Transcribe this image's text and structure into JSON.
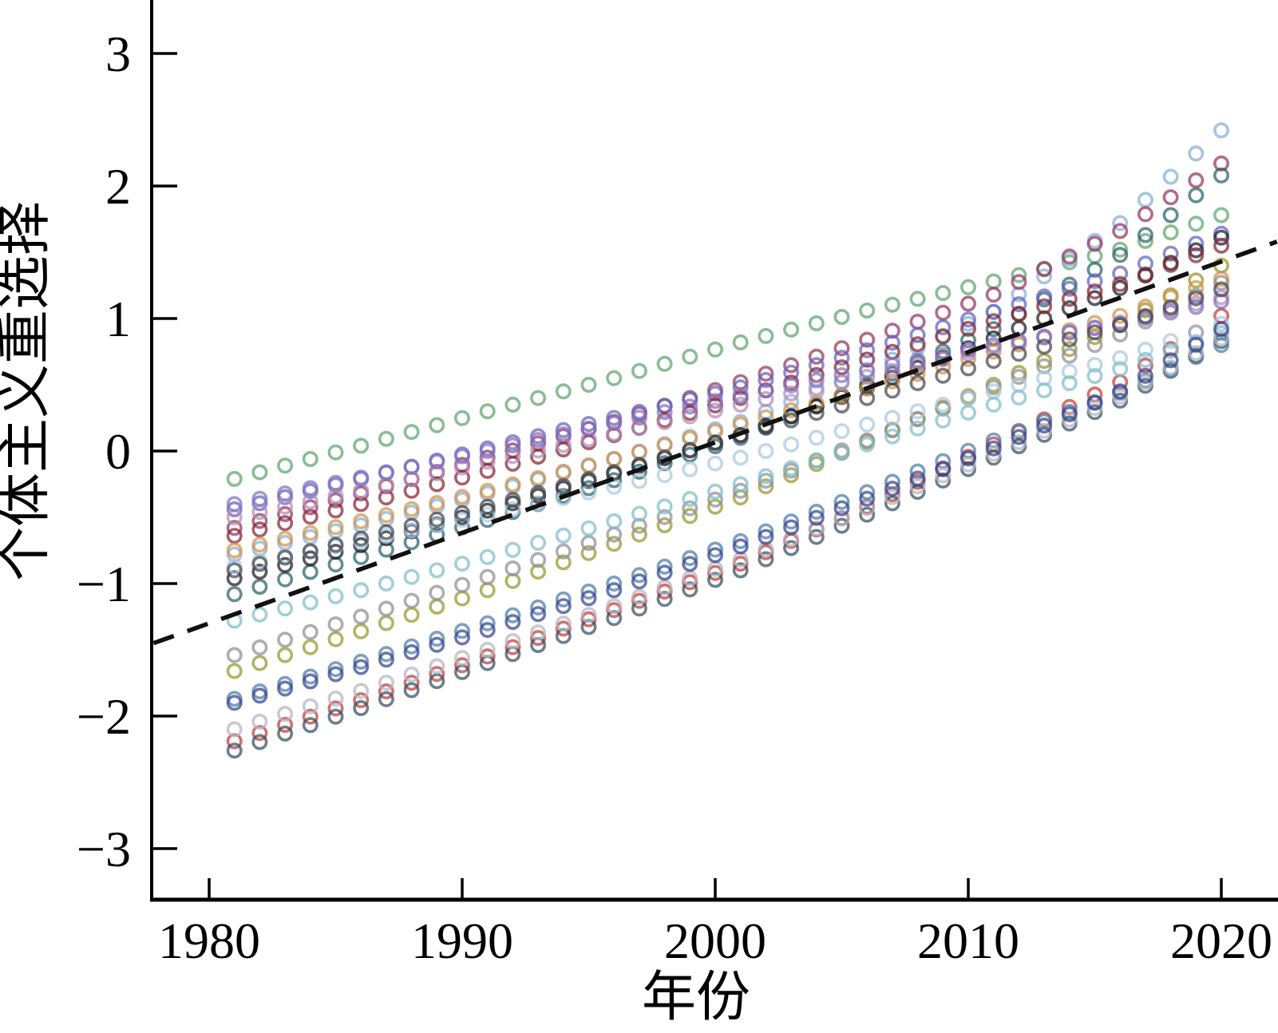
{
  "chart_data": {
    "type": "scatter",
    "title": "",
    "xlabel": "年份",
    "ylabel": "个体主义重选择",
    "x_ticks": [
      1980,
      1990,
      2000,
      2010,
      2020
    ],
    "x_tick_labels": [
      "1980",
      "1990",
      "2000",
      "2010",
      "2020"
    ],
    "y_ticks": [
      3,
      2,
      1,
      0,
      -1,
      -2,
      -3
    ],
    "y_tick_labels": [
      "3",
      "2",
      "1",
      "0",
      "−1",
      "−2",
      "−3"
    ],
    "xlim": [
      1977.7,
      2022.3
    ],
    "ylim": [
      -3.4,
      3.4
    ],
    "grid": false,
    "legend": "none",
    "marker": "open-circle",
    "years_start": 1981,
    "years_end": 2020,
    "control_years": [
      1981,
      1986,
      1991,
      1996,
      2001,
      2006,
      2011,
      2016,
      2020
    ],
    "series": [
      {
        "name": "green",
        "color": "#5ea36c",
        "values": [
          -0.21,
          0.04,
          0.3,
          0.55,
          0.82,
          1.06,
          1.28,
          1.52,
          1.78
        ]
      },
      {
        "name": "sky-blue",
        "color": "#84aed8",
        "values": [
          -0.78,
          -0.56,
          -0.32,
          -0.06,
          0.22,
          0.6,
          1.05,
          1.72,
          2.42
        ]
      },
      {
        "name": "mulberry",
        "color": "#96335e",
        "values": [
          -0.58,
          -0.32,
          -0.05,
          0.22,
          0.52,
          0.84,
          1.18,
          1.66,
          2.17
        ]
      },
      {
        "name": "dark-teal",
        "color": "#27616a",
        "values": [
          -1.08,
          -0.8,
          -0.52,
          -0.22,
          0.1,
          0.5,
          0.92,
          1.48,
          2.08
        ]
      },
      {
        "name": "slate-blue",
        "color": "#5f63bd",
        "values": [
          -0.44,
          -0.21,
          0.02,
          0.25,
          0.48,
          0.76,
          1.05,
          1.34,
          1.64
        ]
      },
      {
        "name": "black",
        "color": "#1b1b1f",
        "values": [
          -0.96,
          -0.71,
          -0.45,
          -0.17,
          0.12,
          0.48,
          0.85,
          1.23,
          1.61
        ]
      },
      {
        "name": "dark-red",
        "color": "#84222f",
        "values": [
          -0.64,
          -0.4,
          -0.15,
          0.12,
          0.4,
          0.69,
          0.98,
          1.26,
          1.55
        ]
      },
      {
        "name": "olive",
        "color": "#95952c",
        "values": [
          -1.66,
          -1.36,
          -1.05,
          -0.7,
          -0.35,
          0.07,
          0.5,
          0.95,
          1.4
        ]
      },
      {
        "name": "orange",
        "color": "#d29245",
        "values": [
          -0.75,
          -0.53,
          -0.3,
          -0.06,
          0.2,
          0.47,
          0.75,
          1.02,
          1.3
        ]
      },
      {
        "name": "gray",
        "color": "#8e8e94",
        "values": [
          -1.54,
          -1.25,
          -0.95,
          -0.63,
          -0.3,
          0.08,
          0.48,
          0.88,
          1.27
        ]
      },
      {
        "name": "plum",
        "color": "#b28ab8",
        "values": [
          -0.5,
          -0.3,
          -0.08,
          0.13,
          0.35,
          0.56,
          0.78,
          0.97,
          1.16
        ]
      },
      {
        "name": "medium-purple",
        "color": "#8270c2",
        "values": [
          -0.4,
          -0.2,
          0.0,
          0.21,
          0.42,
          0.61,
          0.8,
          0.96,
          1.13
        ]
      },
      {
        "name": "crimson",
        "color": "#bf3a3a",
        "values": [
          -2.19,
          -1.88,
          -1.55,
          -1.2,
          -0.85,
          -0.42,
          0.05,
          0.52,
          1.02
        ]
      },
      {
        "name": "pale-blue",
        "color": "#a9c7e0",
        "values": [
          -0.87,
          -0.68,
          -0.48,
          -0.27,
          -0.05,
          0.2,
          0.45,
          0.7,
          0.96
        ]
      },
      {
        "name": "light-teal",
        "color": "#7fbcc9",
        "values": [
          -1.28,
          -1.05,
          -0.8,
          -0.53,
          -0.25,
          0.05,
          0.35,
          0.62,
          0.89
        ]
      },
      {
        "name": "dark-slate",
        "color": "#334f5e",
        "values": [
          -2.26,
          -1.94,
          -1.6,
          -1.26,
          -0.9,
          -0.48,
          -0.05,
          0.38,
          0.83
        ]
      },
      {
        "name": "steel-blue",
        "color": "#4a7ca8",
        "values": [
          -1.87,
          -1.59,
          -1.3,
          -1.0,
          -0.68,
          -0.31,
          0.08,
          0.44,
          0.8
        ]
      },
      {
        "name": "charcoal",
        "color": "#45454d",
        "values": [
          -0.9,
          -0.66,
          -0.42,
          -0.16,
          0.12,
          0.4,
          0.68,
          0.95,
          1.22
        ]
      },
      {
        "name": "silver",
        "color": "#b4b4bc",
        "values": [
          -2.1,
          -1.81,
          -1.5,
          -1.17,
          -0.82,
          -0.43,
          -0.02,
          0.41,
          0.85
        ]
      },
      {
        "name": "navy",
        "color": "#35418f",
        "values": [
          -1.9,
          -1.63,
          -1.35,
          -1.05,
          -0.72,
          -0.36,
          0.02,
          0.45,
          0.92
        ]
      }
    ],
    "trend_line": {
      "style": "dashed",
      "color": "#111111",
      "points": [
        {
          "year": 1977.8,
          "value": -1.45
        },
        {
          "year": 2022.2,
          "value": 1.58
        }
      ]
    }
  }
}
